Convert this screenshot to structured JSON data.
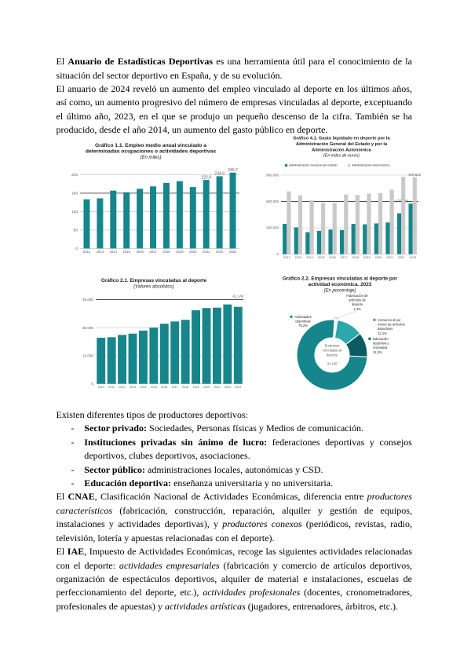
{
  "document": {
    "language": "es",
    "kind": "word-document-page",
    "bullet_marker": "-"
  },
  "colors": {
    "teal": "#17868C",
    "teal_light": "#2CA8AD",
    "teal_dark": "#0B5B64",
    "gray_bar": "#C9C9C9",
    "grid_light": "#C6C6C6",
    "grid_dark": "#4D4D4D",
    "axis_text": "#595959",
    "chart_title": "#1A1A1A",
    "white": "#FFFFFF",
    "sliver_stroke": "#9B9B9B"
  },
  "text_blocks": [
    {
      "id": "intro",
      "lines": [
        {
          "justify": true,
          "runs": [
            {
              "t": "El "
            },
            {
              "t": "Anuario de Estadísticas Deportivas",
              "b": true
            },
            {
              "t": " es una herramienta útil para el conocimiento de la"
            }
          ]
        },
        {
          "justify": false,
          "runs": [
            {
              "t": "situación del sector deportivo en España, y de su evolución."
            }
          ]
        },
        {
          "justify": true,
          "runs": [
            {
              "t": "El anuario de 2024 reveló un aumento del empleo vinculado al deporte en los últimos años,"
            }
          ]
        },
        {
          "justify": true,
          "runs": [
            {
              "t": "así como, un aumento progresivo del número de empresas vinculadas al deporte, exceptuando"
            }
          ]
        },
        {
          "justify": true,
          "runs": [
            {
              "t": "el último año, 2023, en el que se produjo un pequeño descenso de la cifra. También se ha"
            }
          ]
        },
        {
          "justify": false,
          "runs": [
            {
              "t": "producido, desde el año 2014, un aumento del gasto público en deporte."
            }
          ]
        }
      ]
    },
    {
      "id": "productores",
      "lines": [
        {
          "justify": false,
          "runs": [
            {
              "t": "Existen diferentes tipos de productores deportivos:"
            }
          ]
        },
        {
          "justify": false,
          "indent": "bullet",
          "runs": [
            {
              "t": "Sector privado:",
              "b": true
            },
            {
              "t": " Sociedades, Personas físicas y Medios de comunicación."
            }
          ]
        },
        {
          "justify": true,
          "indent": "bullet",
          "runs": [
            {
              "t": "Instituciones privadas sin ánimo de lucro:",
              "b": true
            },
            {
              "t": " federaciones deportivas y consejos"
            }
          ]
        },
        {
          "justify": false,
          "indent": "cont",
          "runs": [
            {
              "t": "deportivos, clubes deportivos, asociaciones."
            }
          ]
        },
        {
          "justify": false,
          "indent": "bullet",
          "runs": [
            {
              "t": "Sector público:",
              "b": true
            },
            {
              "t": " administraciones locales, autonómicas y CSD."
            }
          ]
        },
        {
          "justify": false,
          "indent": "bullet",
          "runs": [
            {
              "t": "Educación deportiva:",
              "b": true
            },
            {
              "t": " enseñanza universitaria y no universitaria."
            }
          ]
        },
        {
          "justify": true,
          "runs": [
            {
              "t": "El "
            },
            {
              "t": "CNAE",
              "b": true
            },
            {
              "t": ", Clasificación Nacional de Actividades Económicas, diferencia entre "
            },
            {
              "t": "productores",
              "i": true
            }
          ]
        },
        {
          "justify": true,
          "runs": [
            {
              "t": "característicos",
              "i": true
            },
            {
              "t": " (fabricación, construcción, reparación, alquiler y gestión de equipos,"
            }
          ]
        },
        {
          "justify": true,
          "runs": [
            {
              "t": "instalaciones y actividades deportivas), y "
            },
            {
              "t": "productores conexos",
              "i": true
            },
            {
              "t": " (periódicos, revistas, radio,"
            }
          ]
        },
        {
          "justify": false,
          "runs": [
            {
              "t": "televisión, lotería y apuestas relacionadas con el deporte)."
            }
          ]
        },
        {
          "justify": true,
          "runs": [
            {
              "t": "El "
            },
            {
              "t": "IAE",
              "b": true
            },
            {
              "t": ", Impuesto de Actividades Económicas, recoge las siguientes actividades relacionadas"
            }
          ]
        },
        {
          "justify": true,
          "runs": [
            {
              "t": "con el deporte: "
            },
            {
              "t": "actividades empresariales",
              "i": true
            },
            {
              "t": " (fabricación y comercio de artículos deportivos,"
            }
          ]
        },
        {
          "justify": true,
          "runs": [
            {
              "t": "organización de espectáculos deportivos, alquiler de material e instalaciones, escuelas de"
            }
          ]
        },
        {
          "justify": true,
          "runs": [
            {
              "t": "perfeccionamiento del deporte, etc.), "
            },
            {
              "t": "actividades profesionales",
              "i": true
            },
            {
              "t": " (docentes, cronometradores,"
            }
          ]
        },
        {
          "justify": false,
          "runs": [
            {
              "t": "profesionales de apuestas) y "
            },
            {
              "t": "actividades artísticas",
              "i": true
            },
            {
              "t": " (jugadores, entrenadores, árbitros, etc.)."
            }
          ]
        }
      ]
    }
  ],
  "chart_data": [
    {
      "id": "chart-1-1",
      "type": "bar",
      "title": "Gráfico 1.1. Empleo medio anual vinculado a determinadas ocupaciones o actividades deportivas",
      "title_lines": [
        "Gráfico 1.1. Empleo medio anual vinculado a",
        "determinadas ocupaciones o actividades deportivas"
      ],
      "subtitle": "(En miles)",
      "categories": [
        "2012",
        "2013",
        "2014",
        "2015",
        "2016",
        "2017",
        "2018",
        "2019",
        "2020",
        "2021",
        "2022",
        "2023"
      ],
      "values": [
        159.9,
        163.1,
        188.2,
        182.6,
        194.1,
        201.8,
        212.9,
        218.9,
        199.8,
        222.9,
        234.9,
        246.7
      ],
      "bar_labels": [
        null,
        null,
        null,
        null,
        null,
        null,
        null,
        null,
        null,
        "222,9",
        "234,9",
        "246,7"
      ],
      "series_color": "teal",
      "yticks": [
        {
          "v": 0,
          "label": "0"
        },
        {
          "v": 60,
          "label": "60"
        },
        {
          "v": 120,
          "label": "120"
        },
        {
          "v": 180,
          "label": "180",
          "dark": true
        },
        {
          "v": 240,
          "label": "240"
        }
      ],
      "ylabel": "",
      "xlabel": "",
      "legend": null
    },
    {
      "id": "chart-4-1",
      "type": "bar",
      "title": "Gráfico 4.1. Gasto liquidado en deporte por la Administración General del Estado y por la Administración Autonómica",
      "title_lines": [
        "Gráfico 4.1. Gasto liquidado en deporte por la",
        "Administración General del Estado y por la",
        "Administración Autonómica"
      ],
      "subtitle": "(En miles de euros)",
      "categories": [
        "2012",
        "2013",
        "2014",
        "2015",
        "2016",
        "2017",
        "2018",
        "2019",
        "2020",
        "2021",
        "2022",
        "2023"
      ],
      "series": [
        {
          "name": "Administración General del Estado",
          "color": "teal",
          "values": [
            345000,
            305000,
            250000,
            265000,
            280000,
            275000,
            345000,
            340000,
            350000,
            360000,
            465000,
            575138
          ],
          "bar_labels": [
            null,
            null,
            null,
            null,
            null,
            null,
            null,
            null,
            null,
            null,
            null,
            "575.138"
          ]
        },
        {
          "name": "Administración Autonómica",
          "color": "gray_bar",
          "values": [
            715000,
            670000,
            615000,
            585000,
            585000,
            680000,
            675000,
            690000,
            695000,
            735000,
            879900,
            876625
          ],
          "bar_labels": [
            null,
            null,
            null,
            null,
            null,
            null,
            null,
            null,
            null,
            null,
            null,
            "876.625"
          ]
        }
      ],
      "yticks": [
        {
          "v": 0,
          "label": "0"
        },
        {
          "v": 300000,
          "label": "300.000"
        },
        {
          "v": 600000,
          "label": "600.000",
          "dark": true
        },
        {
          "v": 900000,
          "label": "900.000"
        }
      ],
      "legend_position": "top"
    },
    {
      "id": "chart-2-1",
      "type": "bar",
      "title": "Gráfico 2.1. Empresas vinculadas al deporte",
      "title_lines": [
        "Gráfico 2.1. Empresas vinculadas al deporte"
      ],
      "subtitle": "(Valores absolutos)",
      "categories": [
        "2010",
        "2011",
        "2012",
        "2013",
        "2014",
        "2015",
        "2016",
        "2017",
        "2018",
        "2019",
        "2020",
        "2021",
        "2022",
        "2023"
      ],
      "values": [
        24600,
        24900,
        26100,
        26800,
        28400,
        30000,
        32100,
        33300,
        34200,
        39300,
        40500,
        40700,
        42420,
        41140
      ],
      "bar_labels": [
        null,
        null,
        null,
        null,
        null,
        null,
        null,
        null,
        null,
        null,
        null,
        null,
        null,
        "41.140"
      ],
      "series_color": "teal",
      "yticks": [
        {
          "v": 0,
          "label": "0"
        },
        {
          "v": 15000,
          "label": "15.000"
        },
        {
          "v": 30000,
          "label": "30.000"
        },
        {
          "v": 45000,
          "label": "45.000",
          "dark": true
        }
      ]
    },
    {
      "id": "chart-2-2",
      "type": "pie",
      "title": "Gráfico 2.2. Empresas vinculadas al deporte por actividad económica. 2023",
      "title_lines": [
        "Gráfico 2.2. Empresas vinculadas al deporte por",
        "actividad económica. 2023"
      ],
      "subtitle": "(En porcentaje)",
      "donut": true,
      "center_label": {
        "lines": [
          "Empresas",
          "vinculadas al",
          "deporte"
        ],
        "value": "41.140"
      },
      "slices": [
        {
          "name": "Fabricación de artículos de deporte",
          "pct": 1.4,
          "color": "white"
        },
        {
          "name": "Comercio al por menor de artículos deportivos",
          "pct": 12.1,
          "color": "teal_light"
        },
        {
          "name": "Educación deportiva y recreativa",
          "pct": 11.3,
          "color": "teal_dark"
        },
        {
          "name": "Actividades deportivas",
          "pct": 75.2,
          "color": "teal"
        }
      ],
      "slice_labels": [
        {
          "lines": [
            "Fabricación de",
            "artículos de",
            "deporte",
            "1,4%"
          ],
          "square": null
        },
        {
          "lines": [
            "Comercio al por",
            "menor de artículos",
            "deportivos",
            "12,1%"
          ],
          "square": "teal_light"
        },
        {
          "lines": [
            "Educación",
            "deportiva y",
            "recreativa",
            "11,3%"
          ],
          "square": "teal_dark"
        },
        {
          "lines": [
            "Actividades",
            "deportivas",
            "75,2%"
          ],
          "square": "teal"
        }
      ]
    }
  ]
}
